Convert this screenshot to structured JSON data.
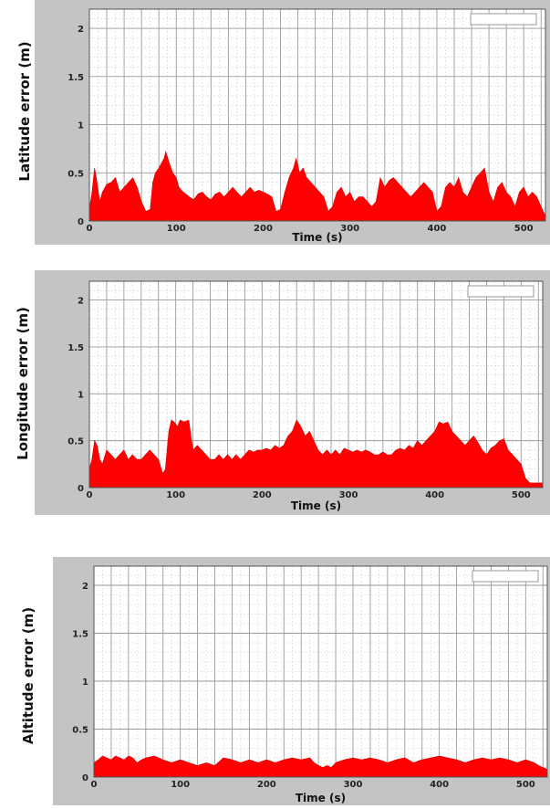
{
  "chart_data": [
    {
      "type": "area",
      "xlabel": "Time (s)",
      "ylabel": "Latitude error (m)",
      "xlim": [
        0,
        525
      ],
      "ylim": [
        0,
        2.2
      ],
      "xticks": [
        "0",
        "100",
        "200",
        "300",
        "400",
        "500"
      ],
      "yticks": [
        "0",
        "0.5",
        "1",
        "1.5",
        "2"
      ],
      "grid": true,
      "legend": "top-right (empty box)",
      "color": "#ff0000",
      "x": [
        0,
        3,
        6,
        8,
        12,
        15,
        20,
        25,
        30,
        35,
        40,
        45,
        50,
        55,
        60,
        65,
        70,
        73,
        76,
        80,
        83,
        86,
        88,
        92,
        96,
        100,
        103,
        108,
        115,
        120,
        125,
        130,
        135,
        140,
        145,
        150,
        155,
        160,
        165,
        170,
        175,
        180,
        185,
        190,
        195,
        200,
        205,
        210,
        215,
        220,
        225,
        230,
        235,
        238,
        242,
        246,
        250,
        255,
        260,
        265,
        270,
        275,
        280,
        285,
        290,
        295,
        300,
        305,
        310,
        315,
        320,
        325,
        330,
        335,
        340,
        345,
        350,
        355,
        360,
        365,
        370,
        375,
        380,
        385,
        390,
        395,
        400,
        405,
        410,
        415,
        420,
        425,
        430,
        435,
        440,
        445,
        450,
        455,
        460,
        465,
        470,
        475,
        480,
        485,
        490,
        495,
        500,
        505,
        510,
        515,
        520,
        525
      ],
      "values": [
        0.12,
        0.3,
        0.55,
        0.45,
        0.2,
        0.3,
        0.38,
        0.4,
        0.45,
        0.3,
        0.35,
        0.4,
        0.45,
        0.35,
        0.2,
        0.1,
        0.12,
        0.4,
        0.5,
        0.55,
        0.6,
        0.65,
        0.72,
        0.6,
        0.5,
        0.45,
        0.35,
        0.3,
        0.25,
        0.22,
        0.28,
        0.3,
        0.25,
        0.22,
        0.28,
        0.3,
        0.25,
        0.3,
        0.35,
        0.3,
        0.25,
        0.3,
        0.35,
        0.3,
        0.32,
        0.3,
        0.28,
        0.25,
        0.1,
        0.12,
        0.3,
        0.45,
        0.55,
        0.65,
        0.5,
        0.55,
        0.45,
        0.4,
        0.35,
        0.3,
        0.25,
        0.1,
        0.15,
        0.3,
        0.35,
        0.25,
        0.3,
        0.2,
        0.25,
        0.25,
        0.2,
        0.15,
        0.2,
        0.45,
        0.35,
        0.42,
        0.45,
        0.4,
        0.35,
        0.3,
        0.25,
        0.3,
        0.35,
        0.4,
        0.35,
        0.3,
        0.1,
        0.15,
        0.35,
        0.4,
        0.35,
        0.45,
        0.3,
        0.25,
        0.35,
        0.45,
        0.5,
        0.55,
        0.3,
        0.2,
        0.35,
        0.4,
        0.3,
        0.25,
        0.15,
        0.3,
        0.35,
        0.25,
        0.3,
        0.25,
        0.15,
        0.05
      ]
    },
    {
      "type": "area",
      "xlabel": "Time (s)",
      "ylabel": "Longitude error (m)",
      "xlim": [
        0,
        525
      ],
      "ylim": [
        0,
        2.2
      ],
      "xticks": [
        "0",
        "100",
        "200",
        "300",
        "400",
        "500"
      ],
      "yticks": [
        "0",
        "0.5",
        "1",
        "1.5",
        "2"
      ],
      "grid": true,
      "legend": "top-right (empty box)",
      "color": "#ff0000",
      "x": [
        0,
        3,
        6,
        9,
        12,
        15,
        20,
        25,
        30,
        35,
        40,
        45,
        50,
        55,
        60,
        65,
        70,
        75,
        80,
        85,
        88,
        92,
        95,
        98,
        102,
        105,
        110,
        115,
        120,
        125,
        130,
        135,
        140,
        145,
        150,
        155,
        160,
        165,
        170,
        175,
        180,
        185,
        190,
        195,
        200,
        205,
        210,
        215,
        220,
        225,
        230,
        235,
        240,
        245,
        250,
        255,
        260,
        265,
        270,
        275,
        280,
        285,
        290,
        295,
        300,
        305,
        310,
        315,
        320,
        325,
        330,
        335,
        340,
        345,
        350,
        355,
        360,
        365,
        370,
        375,
        380,
        385,
        390,
        395,
        400,
        405,
        410,
        415,
        420,
        425,
        430,
        435,
        440,
        445,
        450,
        455,
        460,
        465,
        470,
        475,
        480,
        485,
        490,
        495,
        500,
        505,
        510,
        515,
        520,
        525
      ],
      "values": [
        0.2,
        0.3,
        0.5,
        0.45,
        0.3,
        0.25,
        0.4,
        0.35,
        0.3,
        0.35,
        0.4,
        0.3,
        0.35,
        0.3,
        0.3,
        0.35,
        0.4,
        0.35,
        0.3,
        0.15,
        0.2,
        0.6,
        0.72,
        0.7,
        0.65,
        0.72,
        0.7,
        0.72,
        0.4,
        0.45,
        0.4,
        0.35,
        0.3,
        0.3,
        0.35,
        0.3,
        0.35,
        0.3,
        0.35,
        0.3,
        0.35,
        0.4,
        0.38,
        0.4,
        0.4,
        0.42,
        0.4,
        0.45,
        0.42,
        0.45,
        0.55,
        0.6,
        0.72,
        0.65,
        0.55,
        0.6,
        0.5,
        0.4,
        0.35,
        0.4,
        0.35,
        0.4,
        0.35,
        0.42,
        0.4,
        0.38,
        0.4,
        0.38,
        0.4,
        0.38,
        0.35,
        0.35,
        0.38,
        0.35,
        0.35,
        0.4,
        0.42,
        0.4,
        0.45,
        0.42,
        0.5,
        0.45,
        0.5,
        0.55,
        0.6,
        0.7,
        0.68,
        0.7,
        0.6,
        0.55,
        0.5,
        0.45,
        0.5,
        0.55,
        0.48,
        0.4,
        0.35,
        0.42,
        0.45,
        0.5,
        0.52,
        0.4,
        0.35,
        0.3,
        0.25,
        0.1,
        0.05,
        0.05,
        0.05,
        0.05
      ]
    },
    {
      "type": "area",
      "xlabel": "Time (s)",
      "ylabel": "Altitude error (m)",
      "xlim": [
        0,
        525
      ],
      "ylim": [
        0,
        2.2
      ],
      "xticks": [
        "0",
        "100",
        "200",
        "300",
        "400",
        "500"
      ],
      "yticks": [
        "0",
        "0.5",
        "1",
        "1.5",
        "2"
      ],
      "grid": true,
      "legend": "top-right (empty box)",
      "color": "#ff0000",
      "x": [
        0,
        5,
        10,
        15,
        20,
        25,
        30,
        35,
        40,
        45,
        50,
        55,
        60,
        70,
        80,
        90,
        100,
        110,
        120,
        130,
        140,
        150,
        160,
        170,
        180,
        190,
        200,
        210,
        220,
        230,
        240,
        250,
        255,
        260,
        265,
        270,
        275,
        280,
        290,
        300,
        310,
        320,
        330,
        340,
        350,
        360,
        370,
        380,
        390,
        400,
        410,
        420,
        430,
        440,
        450,
        460,
        470,
        480,
        490,
        500,
        510,
        515,
        520,
        525
      ],
      "values": [
        0.15,
        0.18,
        0.22,
        0.2,
        0.18,
        0.22,
        0.2,
        0.18,
        0.22,
        0.2,
        0.15,
        0.18,
        0.2,
        0.22,
        0.18,
        0.15,
        0.18,
        0.15,
        0.12,
        0.15,
        0.12,
        0.2,
        0.18,
        0.15,
        0.18,
        0.15,
        0.18,
        0.15,
        0.18,
        0.2,
        0.18,
        0.2,
        0.15,
        0.12,
        0.1,
        0.12,
        0.1,
        0.15,
        0.18,
        0.2,
        0.18,
        0.2,
        0.18,
        0.15,
        0.18,
        0.2,
        0.15,
        0.18,
        0.2,
        0.22,
        0.2,
        0.18,
        0.15,
        0.18,
        0.2,
        0.18,
        0.2,
        0.18,
        0.15,
        0.18,
        0.15,
        0.12,
        0.1,
        0.08
      ]
    }
  ]
}
